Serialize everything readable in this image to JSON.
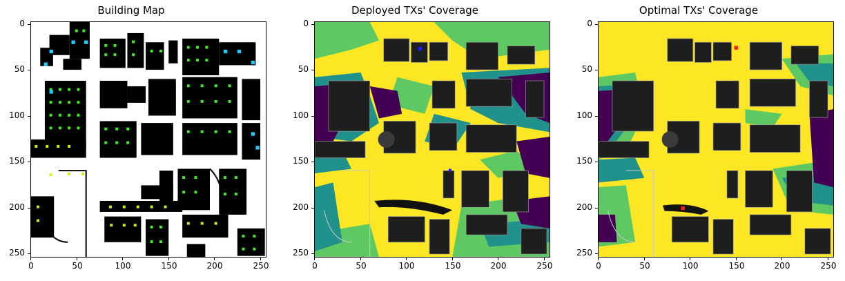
{
  "panels": [
    {
      "title": "Building Map"
    },
    {
      "title": "Deployed TXs' Coverage"
    },
    {
      "title": "Optimal TXs' Coverage"
    }
  ],
  "axes": {
    "yticks": [
      "0",
      "50",
      "100",
      "150",
      "200",
      "250"
    ],
    "xticks": [
      "0",
      "50",
      "100",
      "150",
      "200",
      "250"
    ],
    "range": [
      0,
      255
    ]
  },
  "colors": {
    "building": "#000000",
    "free_space": "#ffffff",
    "receiver_green": "#3ef01f",
    "receiver_yellowgreen": "#c8f01a",
    "receiver_cyan": "#25c9f5",
    "coverage_yellow": "#fde725",
    "coverage_green": "#5ec962",
    "coverage_teal": "#21918c",
    "coverage_purple": "#440154",
    "building_gray": "#1e1e1e",
    "deployed_tx": "#1a22ff",
    "optimal_tx": "#ff1a1a"
  }
}
